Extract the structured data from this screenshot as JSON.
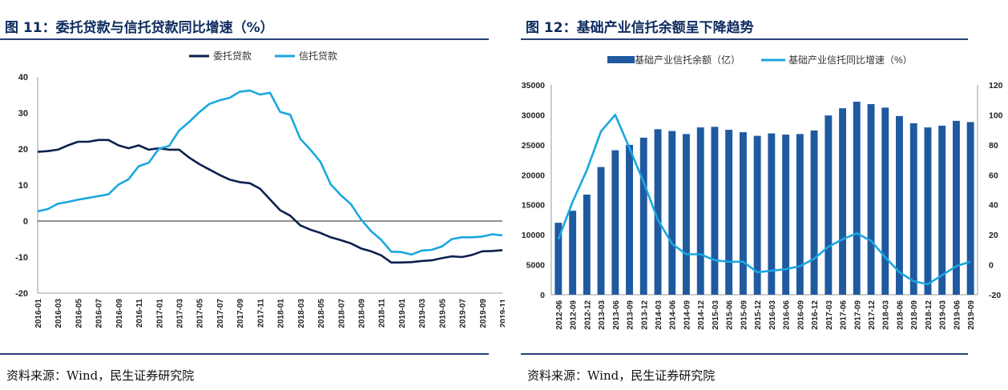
{
  "chart_data": [
    {
      "type": "line",
      "title": "图 11：委托贷款与信托贷款同比增速（%）",
      "source": "资料来源：Wind，民生证券研究院",
      "x": [
        "2016-01",
        "2016-02",
        "2016-03",
        "2016-04",
        "2016-05",
        "2016-06",
        "2016-07",
        "2016-08",
        "2016-09",
        "2016-10",
        "2016-11",
        "2016-12",
        "2017-01",
        "2017-02",
        "2017-03",
        "2017-04",
        "2017-05",
        "2017-06",
        "2017-07",
        "2017-08",
        "2017-09",
        "2017-10",
        "2017-11",
        "2017-12",
        "2018-01",
        "2018-02",
        "2018-03",
        "2018-04",
        "2018-05",
        "2018-06",
        "2018-07",
        "2018-08",
        "2018-09",
        "2018-10",
        "2018-11",
        "2018-12",
        "2019-01",
        "2019-02",
        "2019-03",
        "2019-04",
        "2019-05",
        "2019-06",
        "2019-07",
        "2019-08",
        "2019-09",
        "2019-10",
        "2019-11"
      ],
      "x_tick_labels": [
        "2016-01",
        "2016-03",
        "2016-05",
        "2016-07",
        "2016-09",
        "2016-11",
        "2017-01",
        "2017-03",
        "2017-05",
        "2017-07",
        "2017-09",
        "2017-11",
        "2018-01",
        "2018-03",
        "2018-05",
        "2018-07",
        "2018-09",
        "2018-11",
        "2019-01",
        "2019-03",
        "2019-05",
        "2019-07",
        "2019-09",
        "2019-11"
      ],
      "ylim": [
        -20,
        40
      ],
      "y_ticks": [
        -20,
        -10,
        0,
        10,
        20,
        30,
        40
      ],
      "legend_position": "top-center",
      "series": [
        {
          "name": "委托贷款",
          "color": "#0d1f4f",
          "values": [
            19.2,
            19.4,
            19.8,
            21.0,
            22.0,
            22.0,
            22.5,
            22.5,
            21.0,
            20.2,
            21.0,
            19.8,
            20.2,
            19.8,
            19.8,
            17.6,
            15.8,
            14.3,
            12.8,
            11.5,
            10.8,
            10.5,
            9.0,
            6.0,
            3.0,
            1.5,
            -1.2,
            -2.4,
            -3.3,
            -4.5,
            -5.3,
            -6.2,
            -7.6,
            -8.4,
            -9.5,
            -11.5,
            -11.5,
            -11.4,
            -11.1,
            -10.9,
            -10.3,
            -9.8,
            -10.0,
            -9.4,
            -8.4,
            -8.3,
            -8.1
          ]
        },
        {
          "name": "信托贷款",
          "color": "#1aa7e0",
          "values": [
            2.7,
            3.3,
            4.8,
            5.3,
            5.9,
            6.4,
            6.9,
            7.4,
            10.1,
            11.6,
            15.2,
            16.2,
            20.1,
            20.8,
            25.1,
            27.5,
            30.2,
            32.5,
            33.5,
            34.2,
            35.9,
            36.2,
            35.1,
            35.6,
            30.3,
            29.5,
            22.8,
            19.8,
            16.4,
            10.2,
            7.2,
            4.7,
            0.5,
            -2.8,
            -5.2,
            -8.5,
            -8.6,
            -9.3,
            -8.2,
            -8.0,
            -7.1,
            -5.0,
            -4.5,
            -4.5,
            -4.3,
            -3.7,
            -4.0
          ]
        }
      ]
    },
    {
      "type": "bar+line",
      "title": "图 12：基础产业信托余额呈下降趋势",
      "source": "资料来源：Wind，民生证券研究院",
      "x": [
        "2012-06",
        "2012-09",
        "2012-12",
        "2013-03",
        "2013-06",
        "2013-09",
        "2013-12",
        "2014-03",
        "2014-06",
        "2014-09",
        "2014-12",
        "2015-03",
        "2015-06",
        "2015-09",
        "2015-12",
        "2016-03",
        "2016-06",
        "2016-09",
        "2016-12",
        "2017-03",
        "2017-06",
        "2017-09",
        "2017-12",
        "2018-03",
        "2018-06",
        "2018-09",
        "2018-12",
        "2019-03",
        "2019-06",
        "2019-09"
      ],
      "ylim_left": [
        0,
        35000
      ],
      "y_ticks_left": [
        0,
        5000,
        10000,
        15000,
        20000,
        25000,
        30000,
        35000
      ],
      "ylim_right": [
        -20,
        120
      ],
      "y_ticks_right": [
        -20,
        0,
        20,
        40,
        60,
        80,
        100,
        120
      ],
      "legend_position": "top-center",
      "series": [
        {
          "name": "基础产业信托余额（亿）",
          "type": "bar",
          "axis": "left",
          "color": "#1f5aa0",
          "values": [
            12000,
            14000,
            16700,
            21300,
            24100,
            25000,
            26200,
            27600,
            27300,
            26800,
            27900,
            28000,
            27500,
            27100,
            26500,
            26900,
            26700,
            26800,
            27400,
            29900,
            31100,
            32200,
            31800,
            31200,
            29800,
            28600,
            27900,
            28200,
            29000,
            28800
          ]
        },
        {
          "name": "基础产业信托同比增速（%）",
          "type": "line",
          "axis": "right",
          "color": "#1aa7e0",
          "values": [
            17,
            42,
            63,
            89,
            100,
            78,
            55,
            30,
            14,
            7,
            7,
            3,
            2,
            2,
            -5,
            -4,
            -3,
            -1,
            4,
            12,
            17,
            21,
            16,
            5,
            -5,
            -11,
            -13,
            -7,
            -1,
            2
          ]
        }
      ]
    }
  ]
}
